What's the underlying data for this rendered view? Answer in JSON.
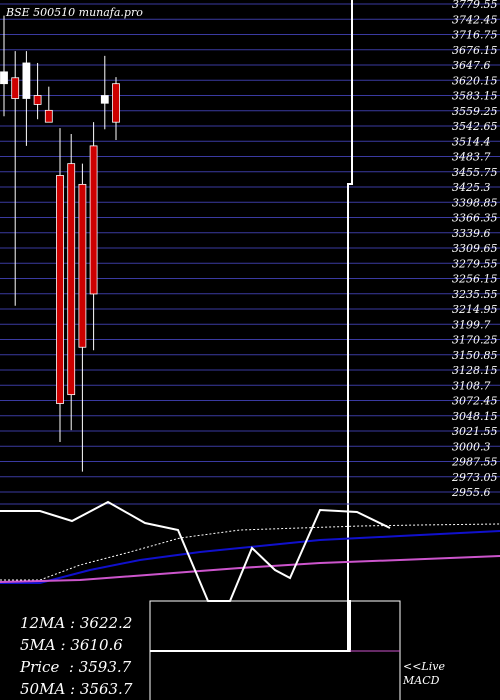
{
  "header": {
    "title": "BSE 500510  munafa.pro"
  },
  "colors": {
    "background": "#000000",
    "grid": "#3a3aa0",
    "bull": "#ffffff",
    "bear": "#cc0000",
    "ma_dotted": "#ffffff",
    "ma_blue": "#1010cc",
    "ma_magenta": "#cc55cc"
  },
  "chart_data": {
    "type": "candlestick",
    "axis_ticks": [
      "3779.55",
      "3742.45",
      "3716.75",
      "3676.15",
      "3647.6",
      "3620.15",
      "3583.15",
      "3559.25",
      "3542.65",
      "3514.4",
      "3483.7",
      "3455.75",
      "3425.3",
      "3398.85",
      "3366.35",
      "3339.6",
      "3309.65",
      "3279.55",
      "3256.15",
      "3235.55",
      "3214.95",
      "3199.7",
      "3170.25",
      "3150.85",
      "3128.15",
      "3108.7",
      "3072.45",
      "3048.15",
      "3021.55",
      "3000.3",
      "2987.55",
      "2973.05",
      "2955.6"
    ],
    "candles": [
      {
        "open": 3645,
        "high": 3760,
        "low": 3590,
        "close": 3665
      },
      {
        "open": 3655,
        "high": 3700,
        "low": 3270,
        "close": 3620
      },
      {
        "open": 3620,
        "high": 3700,
        "low": 3540,
        "close": 3680
      },
      {
        "open": 3625,
        "high": 3680,
        "low": 3585,
        "close": 3610
      },
      {
        "open": 3600,
        "high": 3640,
        "low": 3580,
        "close": 3580
      },
      {
        "open": 3490,
        "high": 3570,
        "low": 3040,
        "close": 3105
      },
      {
        "open": 3510,
        "high": 3560,
        "low": 3060,
        "close": 3120
      },
      {
        "open": 3475,
        "high": 3510,
        "low": 2990,
        "close": 3200
      },
      {
        "open": 3540,
        "high": 3580,
        "low": 3195,
        "close": 3290
      },
      {
        "open": 3612,
        "high": 3692,
        "low": 3568,
        "close": 3625
      },
      {
        "open": 3645,
        "high": 3656,
        "low": 3550,
        "close": 3580
      }
    ],
    "stats": [
      {
        "label": "12MA",
        "value": "3622.2"
      },
      {
        "label": "5MA",
        "value": "3610.6"
      },
      {
        "label": "Price",
        "value": "3593.7"
      },
      {
        "label": "50MA",
        "value": "3563.7"
      }
    ],
    "live_label": "<<Live",
    "macd_label": "MACD"
  }
}
